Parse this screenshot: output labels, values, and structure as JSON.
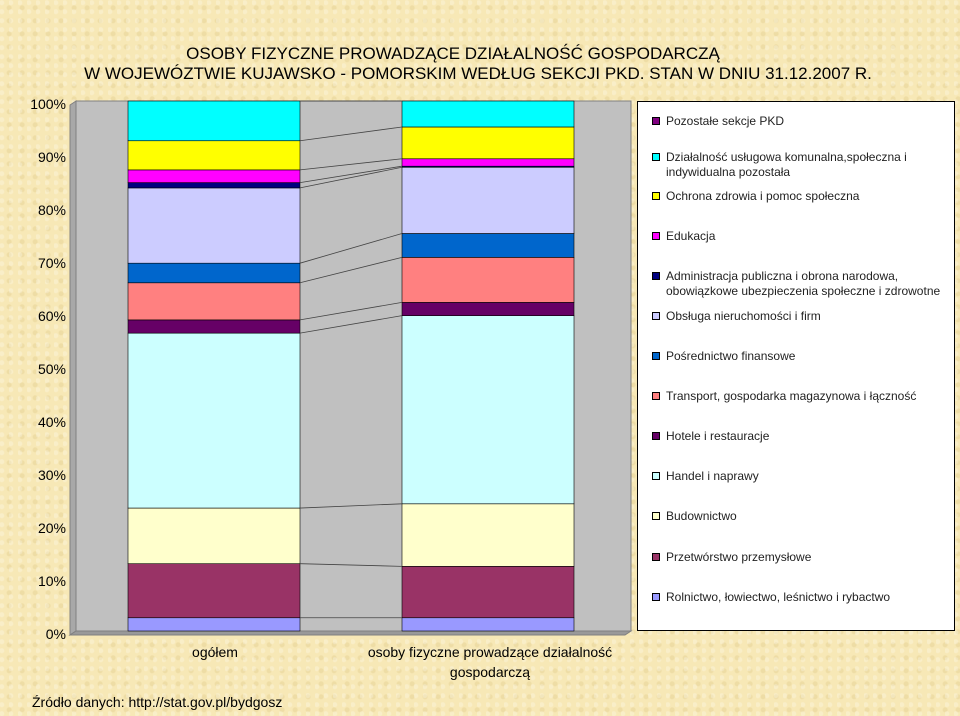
{
  "chart_data": {
    "type": "bar",
    "stacked": true,
    "title_lines": [
      "OSOBY FIZYCZNE PROWADZĄCE DZIAŁALNOŚĆ GOSPODARCZĄ",
      "W WOJEWÓZTWIE KUJAWSKO - POMORSKIM WEDŁUG SEKCJI PKD. STAN W DNIU 31.12.2007 R."
    ],
    "categories": [
      "ogółem",
      "osoby fizyczne prowadzące działalność gospodarczą"
    ],
    "y_ticks": [
      "0%",
      "10%",
      "20%",
      "30%",
      "40%",
      "50%",
      "60%",
      "70%",
      "80%",
      "90%",
      "100%"
    ],
    "ylim": [
      0,
      100
    ],
    "grid": false,
    "legend_position": "right",
    "series": [
      {
        "name": "Rolnictwo, łowiectwo, leśnictwo i rybactwo",
        "color": "#9999ff",
        "values": [
          2.5,
          2.5
        ]
      },
      {
        "name": "Przetwórstwo przemysłowe",
        "color": "#993366",
        "values": [
          10.2,
          9.7
        ]
      },
      {
        "name": "Budownictwo",
        "color": "#ffffcc",
        "values": [
          10.5,
          11.8
        ]
      },
      {
        "name": "Handel i naprawy",
        "color": "#ccffff",
        "values": [
          33.0,
          35.5
        ]
      },
      {
        "name": "Hotele i restauracje",
        "color": "#660066",
        "values": [
          2.5,
          2.5
        ]
      },
      {
        "name": "Transport, gospodarka magazynowa i łączność",
        "color": "#ff8080",
        "values": [
          7.0,
          8.5
        ]
      },
      {
        "name": "Pośrednictwo finansowe",
        "color": "#0066cc",
        "values": [
          3.7,
          4.5
        ]
      },
      {
        "name": "Obsługa nieruchomości i firm",
        "color": "#ccccff",
        "values": [
          14.2,
          12.5
        ]
      },
      {
        "name": "Administracja publiczna i obrona narodowa, obowiązkowe ubezpieczenia społeczne i zdrowotne",
        "color": "#000080",
        "values": [
          1.0,
          0.2
        ]
      },
      {
        "name": "Edukacja",
        "color": "#ff00ff",
        "values": [
          2.4,
          1.4
        ]
      },
      {
        "name": "Ochrona zdrowia i pomoc społeczna",
        "color": "#ffff00",
        "values": [
          5.5,
          6.0
        ]
      },
      {
        "name": "Działalność usługowa komunalna,społeczna i indywidualna pozostała",
        "color": "#00ffff",
        "values": [
          7.5,
          4.9
        ]
      },
      {
        "name": "Pozostałe sekcje PKD",
        "color": "#800080",
        "values": [
          0,
          0
        ]
      }
    ]
  },
  "source": "Źródło danych: http://stat.gov.pl/bydgosz"
}
